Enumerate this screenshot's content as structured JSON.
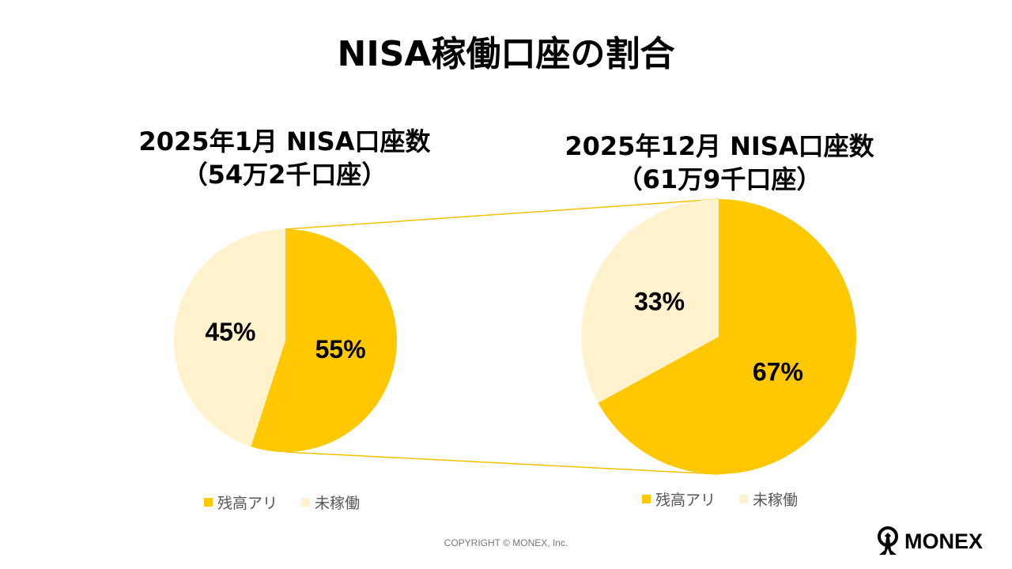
{
  "title": "NISA稼働口座の割合",
  "colors": {
    "active": "#FFC800",
    "inactive": "#FFF2CC",
    "connector": "#F2C200"
  },
  "chart_data": [
    {
      "type": "pie",
      "title_line1": "2025年1月 NISA口座数",
      "title_line2": "（54万2千口座）",
      "slices": [
        {
          "name": "残高アリ",
          "value": 55,
          "label": "55%"
        },
        {
          "name": "未稼働",
          "value": 45,
          "label": "45%"
        }
      ],
      "legend": [
        "残高アリ",
        "未稼働"
      ],
      "legend_position": "bottom"
    },
    {
      "type": "pie",
      "title_line1": "2025年12月 NISA口座数",
      "title_line2": "（61万9千口座）",
      "slices": [
        {
          "name": "残高アリ",
          "value": 67,
          "label": "67%"
        },
        {
          "name": "未稼働",
          "value": 33,
          "label": "33%"
        }
      ],
      "legend": [
        "残高アリ",
        "未稼働"
      ],
      "legend_position": "bottom"
    }
  ],
  "footer": {
    "copyright": "COPYRIGHT © MONEX, Inc.",
    "logo": "MONEX"
  }
}
